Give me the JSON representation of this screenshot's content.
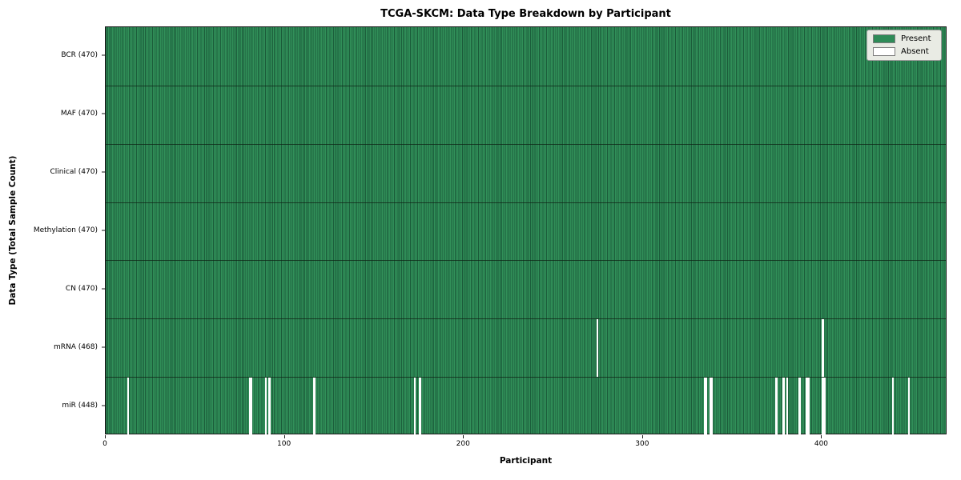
{
  "chart_data": {
    "type": "heatmap",
    "title": "TCGA-SKCM: Data Type Breakdown by Participant",
    "xlabel": "Participant",
    "ylabel": "Data Type (Total Sample Count)",
    "n_participants": 470,
    "x_ticks": [
      0,
      100,
      200,
      300,
      400
    ],
    "legend_position": "upper right",
    "grid": false,
    "colors": {
      "present": "#2e8b57",
      "present_stripe_dark": "#1b5c3a",
      "absent": "#ffffff"
    },
    "legend": [
      {
        "label": "Present",
        "color": "#2e8b57"
      },
      {
        "label": "Absent",
        "color": "#ffffff"
      }
    ],
    "rows": [
      {
        "label": "BCR (470)",
        "data_type": "BCR",
        "present_count": 470,
        "absent_participants": []
      },
      {
        "label": "MAF (470)",
        "data_type": "MAF",
        "present_count": 470,
        "absent_participants": []
      },
      {
        "label": "Clinical (470)",
        "data_type": "Clinical",
        "present_count": 470,
        "absent_participants": []
      },
      {
        "label": "Methylation (470)",
        "data_type": "Methylation",
        "present_count": 470,
        "absent_participants": []
      },
      {
        "label": "CN (470)",
        "data_type": "CN",
        "present_count": 470,
        "absent_participants": []
      },
      {
        "label": "mRNA (468)",
        "data_type": "mRNA",
        "present_count": 468,
        "absent_participants": [
          274,
          400
        ]
      },
      {
        "label": "miR (448)",
        "data_type": "miR",
        "present_count": 448,
        "absent_participants": [
          12,
          80,
          81,
          89,
          91,
          116,
          172,
          175,
          334,
          335,
          337,
          338,
          374,
          378,
          380,
          387,
          391,
          392,
          400,
          401,
          439,
          448
        ]
      }
    ]
  }
}
